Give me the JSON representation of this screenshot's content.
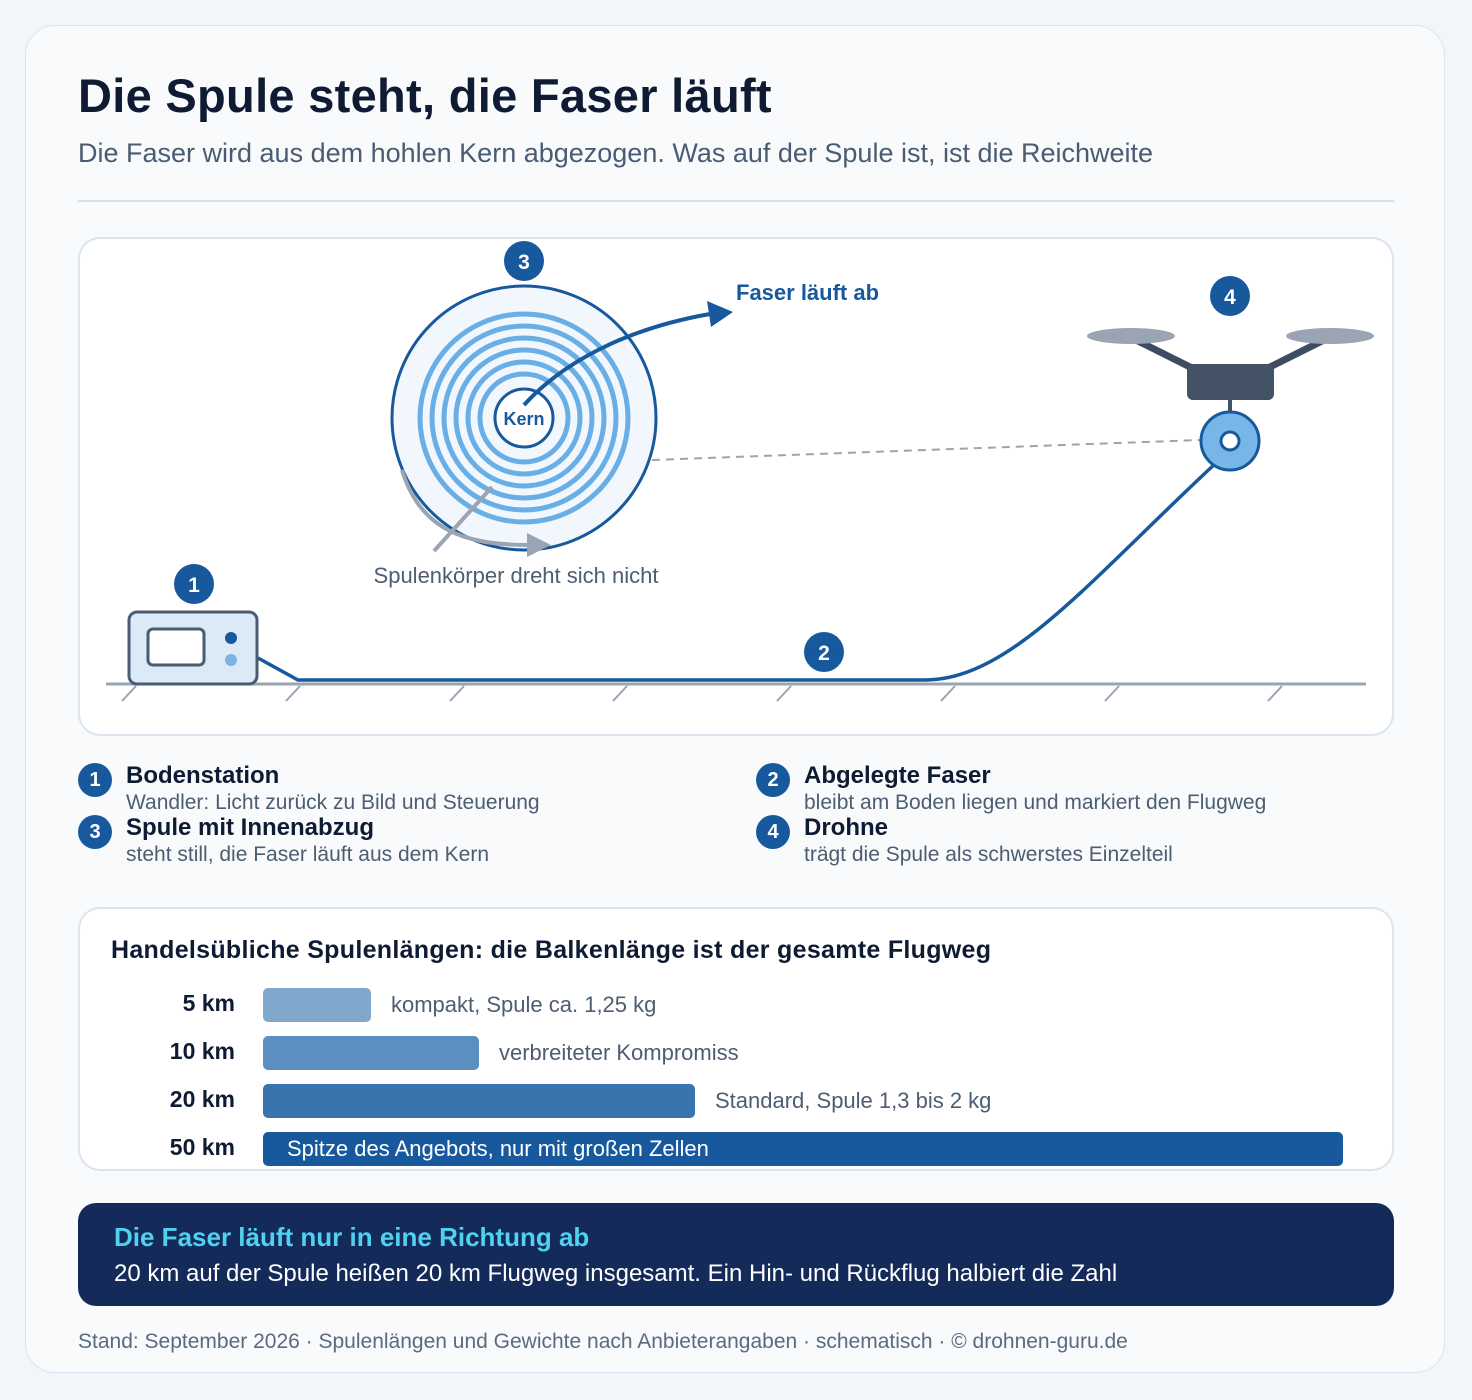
{
  "title": "Die Spule steht, die Faser läuft",
  "subtitle": "Die Faser wird aus dem hohlen Kern abgezogen. Was auf der Spule ist, ist die Reichweite",
  "diagram": {
    "core_label": "Kern",
    "fiber_out_label": "Faser läuft ab",
    "spool_caption": "Spulenkörper dreht sich nicht",
    "markers": [
      "1",
      "2",
      "3",
      "4"
    ]
  },
  "legend": [
    {
      "num": "1",
      "title": "Bodenstation",
      "desc": "Wandler: Licht zurück zu Bild und Steuerung"
    },
    {
      "num": "2",
      "title": "Abgelegte Faser",
      "desc": "bleibt am Boden liegen und markiert den Flugweg"
    },
    {
      "num": "3",
      "title": "Spule mit Innenabzug",
      "desc": "steht still, die Faser läuft aus dem Kern"
    },
    {
      "num": "4",
      "title": "Drohne",
      "desc": "trägt die Spule als schwerstes Einzelteil"
    }
  ],
  "bars": {
    "title": "Handelsübliche Spulenlängen: die Balkenlänge ist der gesamte Flugweg",
    "rows": [
      {
        "label": "5 km",
        "value": 5,
        "note": "kompakt, Spule ca. 1,25 kg",
        "color": "#7fa8cc"
      },
      {
        "label": "10 km",
        "value": 10,
        "note": "verbreiteter Kompromiss",
        "color": "#5b8fbf"
      },
      {
        "label": "20 km",
        "value": 20,
        "note": "Standard, Spule 1,3 bis 2 kg",
        "color": "#3875ae"
      },
      {
        "label": "50 km",
        "value": 50,
        "note": "Spitze des Angebots, nur mit großen Zellen",
        "color": "#17599c"
      }
    ]
  },
  "callout": {
    "title": "Die Faser läuft nur in eine Richtung ab",
    "text": "20 km auf der Spule heißen 20 km Flugweg insgesamt. Ein Hin- und Rückflug halbiert die Zahl"
  },
  "footer": "Stand: September 2026 · Spulenlängen und Gewichte nach Anbieterangaben · schematisch · © drohnen-guru.de",
  "colors": {
    "navy": "#142b5a",
    "accent": "#17599c",
    "cyan": "#4fd1f0"
  }
}
